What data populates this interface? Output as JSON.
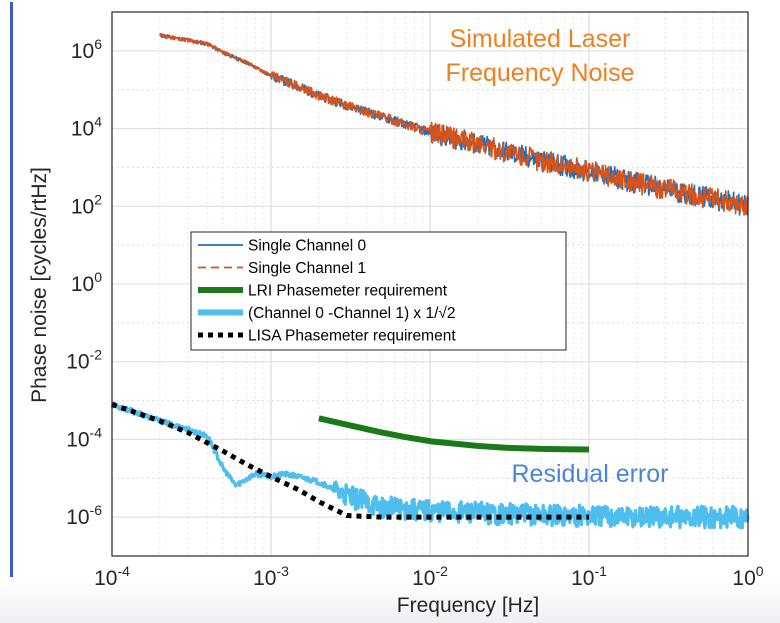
{
  "chart_data": {
    "type": "line",
    "xscale": "log",
    "yscale": "log",
    "xlim": [
      0.0001,
      1
    ],
    "ylim": [
      1e-07,
      10000000.0
    ],
    "grid": true,
    "xlabel": "Frequency [Hz]",
    "ylabel": "Phase noise [cycles/rtHz]",
    "x_ticks": [
      {
        "value": 0.0001,
        "base": "10",
        "exp": "-4"
      },
      {
        "value": 0.001,
        "base": "10",
        "exp": "-3"
      },
      {
        "value": 0.01,
        "base": "10",
        "exp": "-2"
      },
      {
        "value": 0.1,
        "base": "10",
        "exp": "-1"
      },
      {
        "value": 1,
        "base": "10",
        "exp": "0"
      }
    ],
    "y_ticks": [
      {
        "value": 1000000.0,
        "base": "10",
        "exp": "6"
      },
      {
        "value": 10000.0,
        "base": "10",
        "exp": "4"
      },
      {
        "value": 100.0,
        "base": "10",
        "exp": "2"
      },
      {
        "value": 1,
        "base": "10",
        "exp": "0"
      },
      {
        "value": 0.01,
        "base": "10",
        "exp": "-2"
      },
      {
        "value": 0.0001,
        "base": "10",
        "exp": "-4"
      },
      {
        "value": 1e-06,
        "base": "10",
        "exp": "-6"
      }
    ],
    "legend_position": "center-left",
    "series": [
      {
        "name": "Single Channel 0",
        "color": "#1f6fbf",
        "style": "solid",
        "x": [
          0.0002,
          0.0003,
          0.0004,
          0.0005,
          0.0007,
          0.001,
          0.0015,
          0.002,
          0.003,
          0.005,
          0.007,
          0.01,
          0.02,
          0.03,
          0.05,
          0.07,
          0.1,
          0.2,
          0.3,
          0.5,
          0.7,
          1
        ],
        "y": [
          2500000,
          1900000,
          1500000,
          900000,
          500000,
          230000,
          120000,
          70000,
          40000,
          20000,
          13000,
          8000,
          4000,
          2500,
          1500,
          1100,
          800,
          400,
          280,
          180,
          140,
          100
        ]
      },
      {
        "name": "Single Channel 1",
        "color": "#d95319",
        "style": "dashed",
        "x": [
          0.0002,
          0.0003,
          0.0004,
          0.0005,
          0.0007,
          0.001,
          0.0015,
          0.002,
          0.003,
          0.005,
          0.007,
          0.01,
          0.02,
          0.03,
          0.05,
          0.07,
          0.1,
          0.2,
          0.3,
          0.5,
          0.7,
          1
        ],
        "y": [
          2500000,
          1900000,
          1500000,
          900000,
          500000,
          230000,
          120000,
          70000,
          40000,
          20000,
          13000,
          8000,
          4000,
          2500,
          1500,
          1100,
          800,
          400,
          280,
          180,
          140,
          100
        ]
      },
      {
        "name": "LRI Phasemeter requirement",
        "color": "#1a7a1a",
        "style": "solid-thick",
        "x": [
          0.002,
          0.003,
          0.005,
          0.007,
          0.01,
          0.02,
          0.03,
          0.05,
          0.07,
          0.1
        ],
        "y": [
          0.00035,
          0.00024,
          0.00015,
          0.000115,
          9e-05,
          6.8e-05,
          6.1e-05,
          5.7e-05,
          5.6e-05,
          5.5e-05
        ]
      },
      {
        "name": "(Channel 0 -Channel 1) x 1/√2",
        "color": "#4dbeee",
        "style": "solid-thick",
        "x": [
          0.0001,
          0.0002,
          0.0003,
          0.0004,
          0.0005,
          0.0006,
          0.0007,
          0.0008,
          0.001,
          0.0012,
          0.0015,
          0.002,
          0.003,
          0.005,
          0.01,
          0.03,
          0.1,
          0.3,
          1
        ],
        "y": [
          0.0008,
          0.0003,
          0.00018,
          0.00012,
          1.8e-05,
          6.5e-06,
          9.5e-06,
          1.3e-05,
          1.1e-05,
          1.3e-05,
          1.1e-05,
          8e-06,
          3.5e-06,
          1.8e-06,
          1.5e-06,
          1.2e-06,
          1.1e-06,
          1e-06,
          1e-06
        ]
      },
      {
        "name": "LISA Phasemeter requirement",
        "color": "#000000",
        "style": "dotted-thick",
        "x": [
          0.0001,
          0.0002,
          0.0003,
          0.0005,
          0.0007,
          0.001,
          0.0015,
          0.002,
          0.003,
          0.005,
          0.01,
          0.03,
          0.1
        ],
        "y": [
          0.0008,
          0.0003,
          0.00015,
          5e-05,
          2.3e-05,
          1.1e-05,
          5e-06,
          2.5e-06,
          1.1e-06,
          1e-06,
          1e-06,
          1e-06,
          1e-06
        ]
      }
    ],
    "annotations": [
      {
        "lines": [
          "Simulated Laser",
          "Frequency Noise"
        ],
        "color": "#f07f1e"
      },
      {
        "lines": [
          "Residual error"
        ],
        "color": "#4a86d6"
      }
    ]
  }
}
